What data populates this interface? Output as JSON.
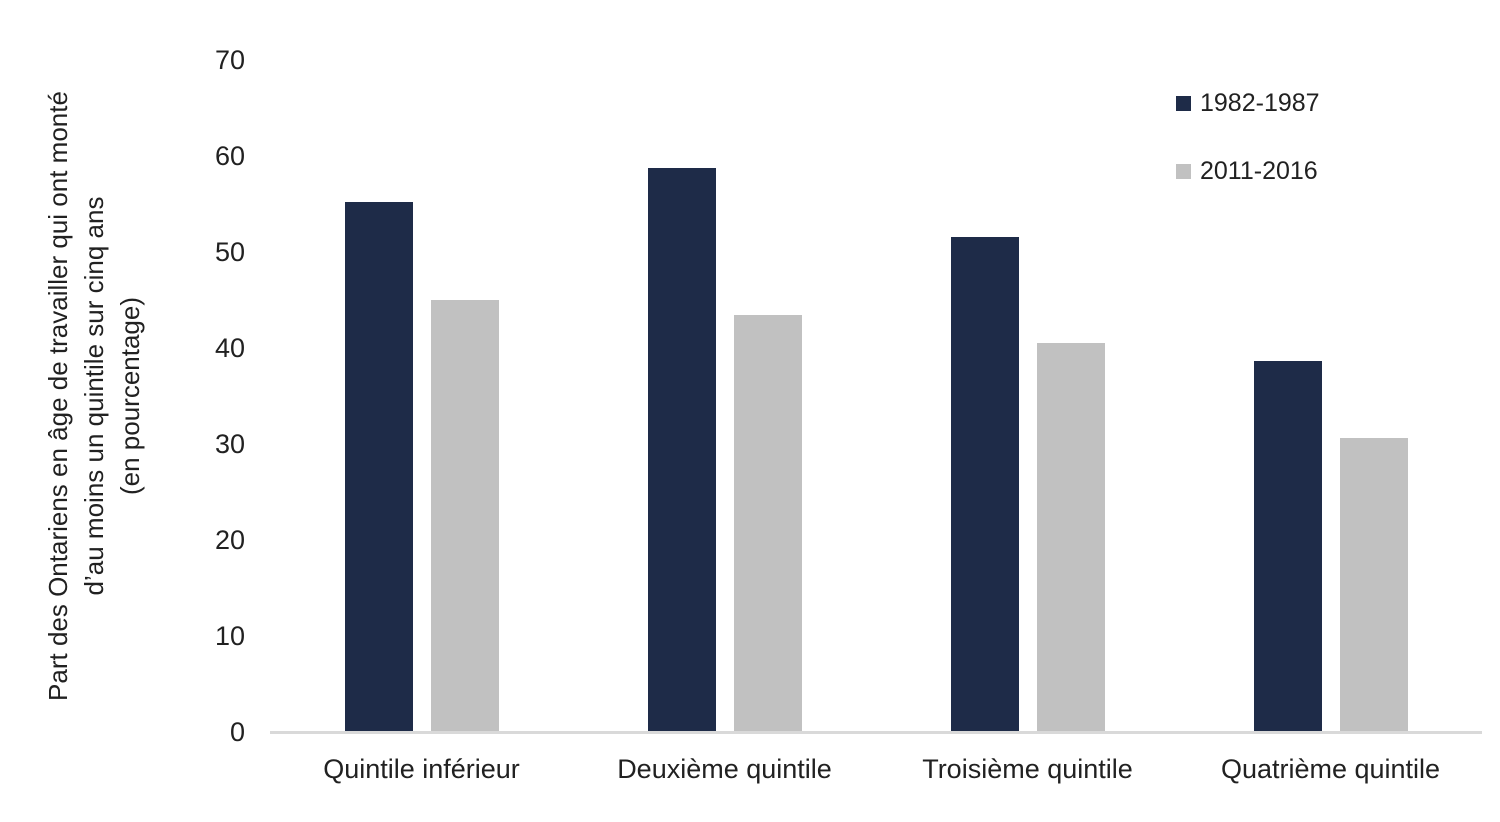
{
  "chart_data": {
    "type": "bar",
    "title": "",
    "categories": [
      "Quintile inférieur",
      "Deuxième quintile",
      "Troisième quintile",
      "Quatrième quintile"
    ],
    "series": [
      {
        "name": "1982-1987",
        "color": "#1E2B48",
        "values": [
          55.2,
          58.7,
          51.6,
          38.6
        ]
      },
      {
        "name": "2011-2016",
        "color": "#C1C1C1",
        "values": [
          45.0,
          43.4,
          40.5,
          30.6
        ]
      }
    ],
    "ylabel_lines": [
      "Part des Ontariens en âge de travailler qui ont monté",
      "d’au moins un quintile sur cinq ans",
      "(en pourcentage)"
    ],
    "xlabel": "",
    "y_ticks": [
      0,
      10,
      20,
      30,
      40,
      50,
      60,
      70
    ],
    "ylim": [
      0,
      70
    ],
    "grid": false,
    "legend_position": "top-right",
    "colors": {
      "axis_line": "#D9D9D9",
      "text": "#212121",
      "background": "#ffffff"
    }
  }
}
